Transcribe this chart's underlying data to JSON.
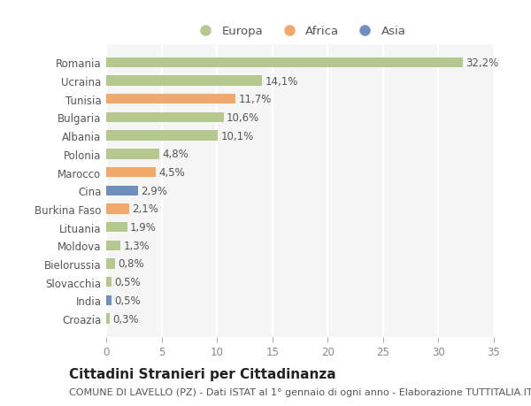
{
  "categories": [
    "Romania",
    "Ucraina",
    "Tunisia",
    "Bulgaria",
    "Albania",
    "Polonia",
    "Marocco",
    "Cina",
    "Burkina Faso",
    "Lituania",
    "Moldova",
    "Bielorussia",
    "Slovacchia",
    "India",
    "Croazia"
  ],
  "values": [
    32.2,
    14.1,
    11.7,
    10.6,
    10.1,
    4.8,
    4.5,
    2.9,
    2.1,
    1.9,
    1.3,
    0.8,
    0.5,
    0.5,
    0.3
  ],
  "labels": [
    "32,2%",
    "14,1%",
    "11,7%",
    "10,6%",
    "10,1%",
    "4,8%",
    "4,5%",
    "2,9%",
    "2,1%",
    "1,9%",
    "1,3%",
    "0,8%",
    "0,5%",
    "0,5%",
    "0,3%"
  ],
  "continent": [
    "Europa",
    "Europa",
    "Africa",
    "Europa",
    "Europa",
    "Europa",
    "Africa",
    "Asia",
    "Africa",
    "Europa",
    "Europa",
    "Europa",
    "Europa",
    "Asia",
    "Europa"
  ],
  "colors": {
    "Europa": "#b5c98e",
    "Africa": "#f0a86c",
    "Asia": "#6f8fbf"
  },
  "title": "Cittadini Stranieri per Cittadinanza",
  "subtitle": "COMUNE DI LAVELLO (PZ) - Dati ISTAT al 1° gennaio di ogni anno - Elaborazione TUTTITALIA.IT",
  "xlim": [
    0,
    35
  ],
  "xticks": [
    0,
    5,
    10,
    15,
    20,
    25,
    30,
    35
  ],
  "plot_bg_color": "#f5f5f5",
  "fig_bg_color": "#ffffff",
  "bar_height": 0.55,
  "label_fontsize": 8.5,
  "tick_fontsize": 8.5,
  "title_fontsize": 11,
  "subtitle_fontsize": 8,
  "grid_color": "#ffffff",
  "ytick_color": "#555555",
  "xtick_color": "#888888",
  "label_color": "#555555"
}
